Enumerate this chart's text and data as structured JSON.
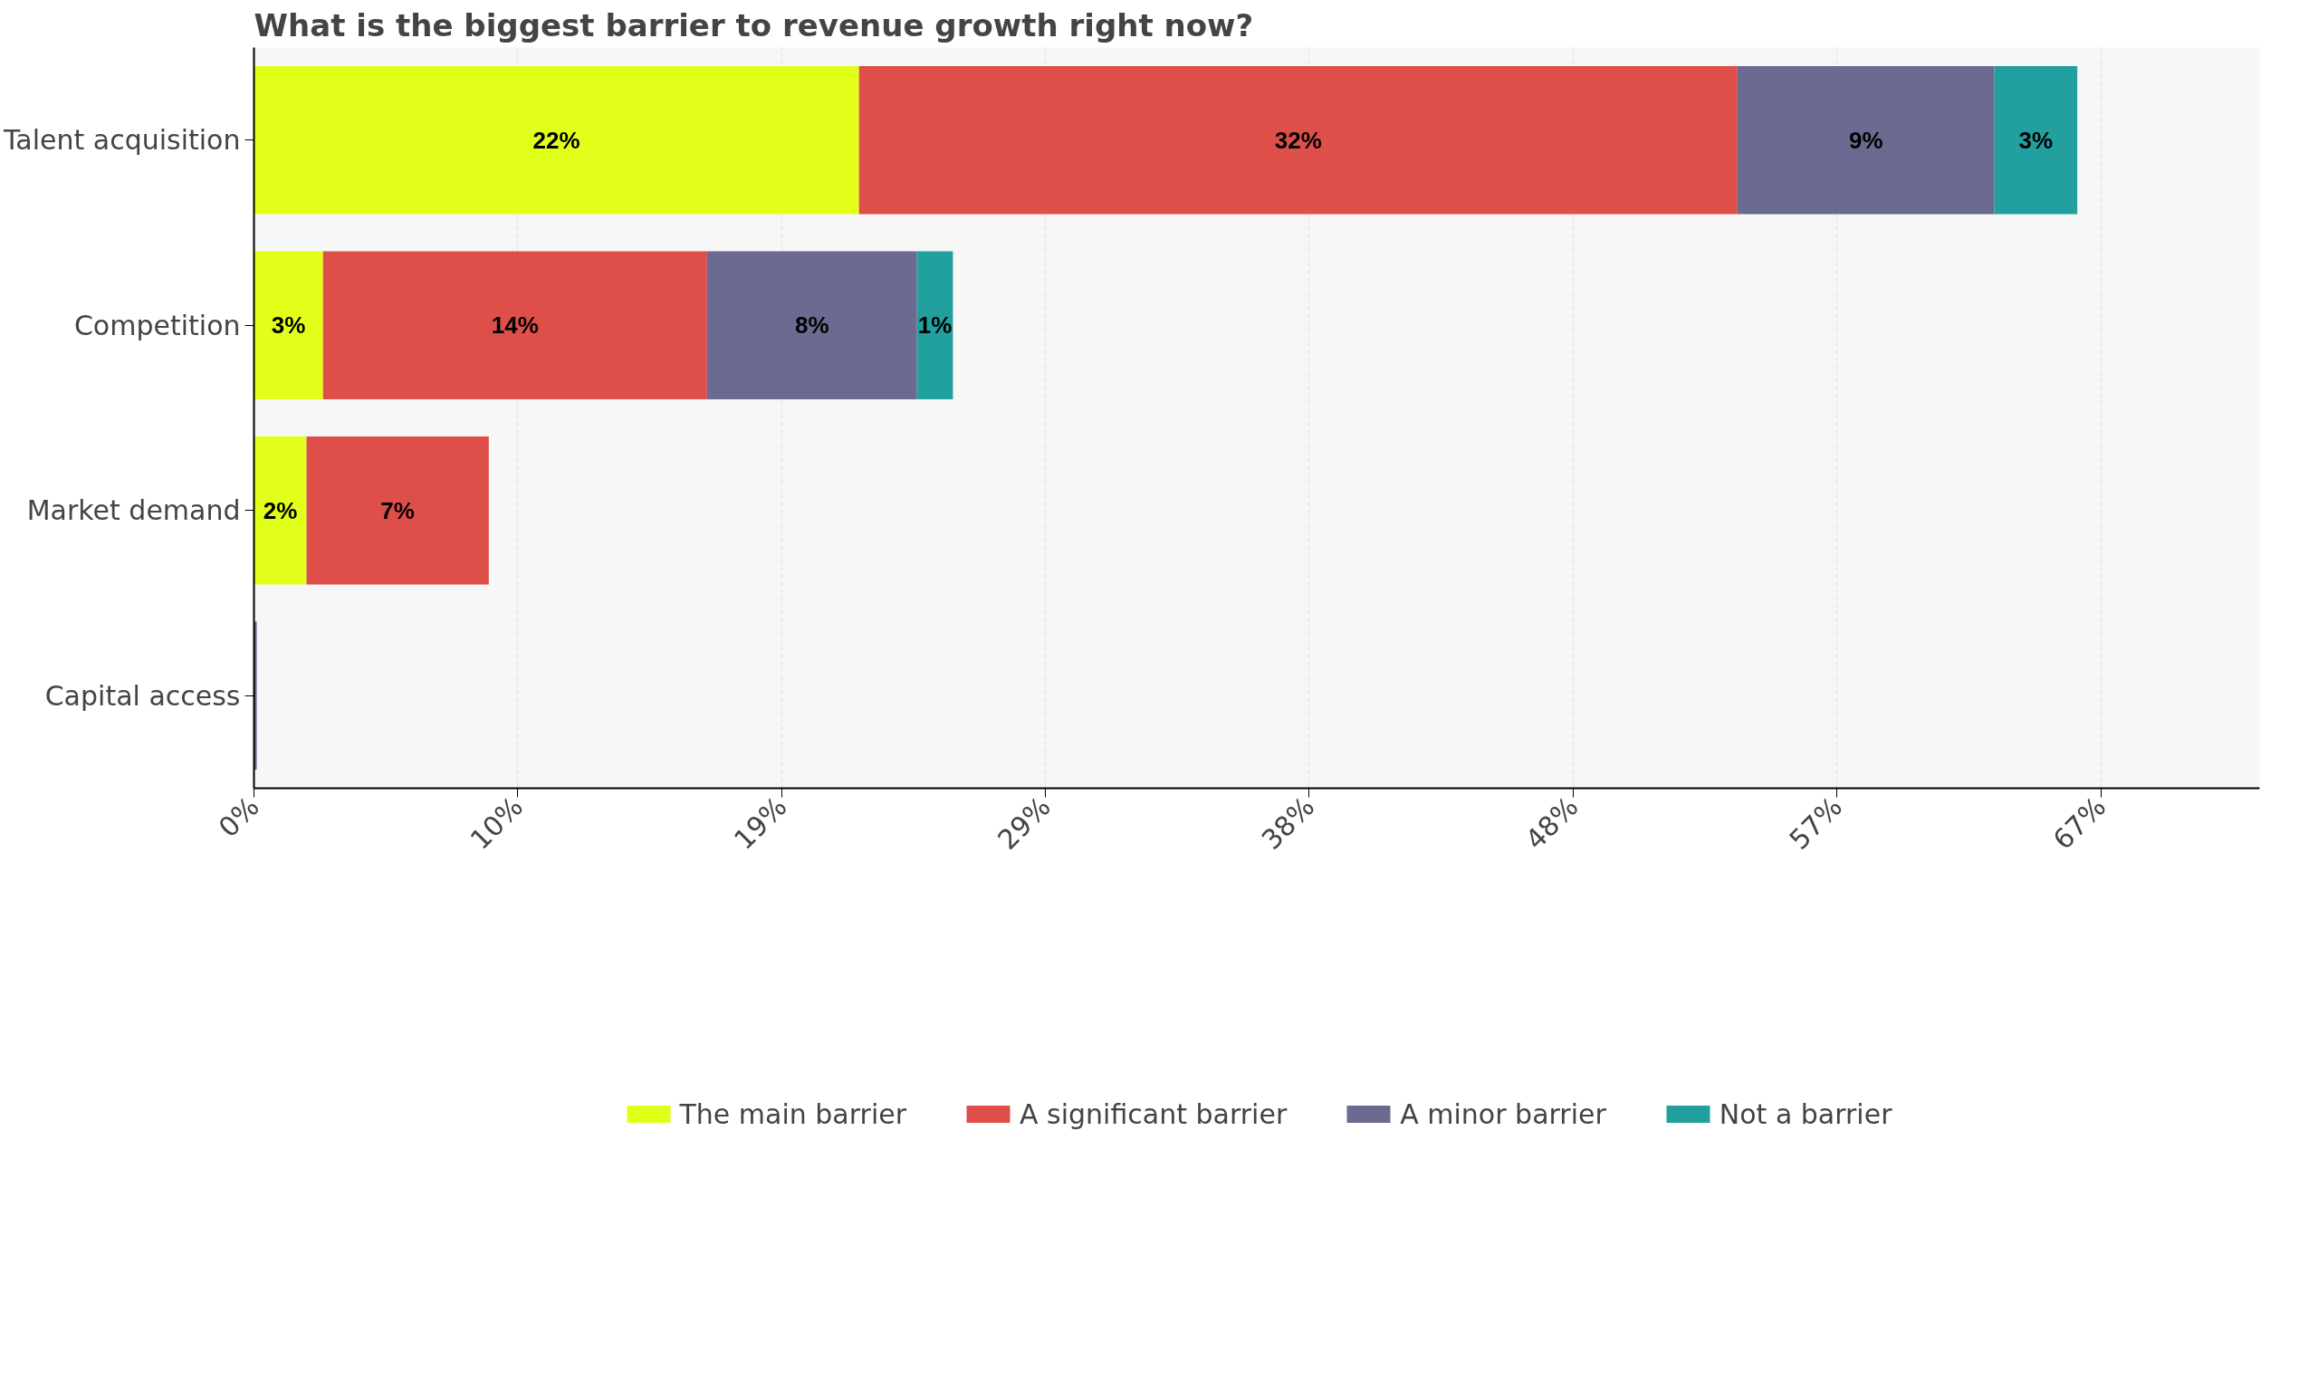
{
  "chart_data": {
    "type": "bar",
    "orientation": "horizontal",
    "stacked": true,
    "title": "What is the biggest barrier to revenue growth right now?",
    "categories": [
      "Talent acquisition",
      "Competition",
      "Market demand",
      "Capital access"
    ],
    "series": [
      {
        "name": "The main barrier",
        "color": "#e2ff1a",
        "values": [
          21.9,
          2.5,
          1.9,
          0
        ],
        "value_labels": [
          "22%",
          "3%",
          "2%",
          null
        ]
      },
      {
        "name": "A significant barrier",
        "color": "#df4f4a",
        "values": [
          31.8,
          13.9,
          6.6,
          0
        ],
        "value_labels": [
          "32%",
          "14%",
          "7%",
          null
        ]
      },
      {
        "name": "A minor barrier",
        "color": "#6b6a90",
        "values": [
          9.3,
          7.6,
          0,
          0.1
        ],
        "value_labels": [
          "9%",
          "8%",
          null,
          null
        ]
      },
      {
        "name": "Not a barrier",
        "color": "#21a09f",
        "values": [
          3.0,
          1.3,
          0,
          0
        ],
        "value_labels": [
          "3%",
          "1%",
          null,
          null
        ]
      }
    ],
    "xlim": [
      0,
      72.6
    ],
    "xticks": [
      {
        "value": 0,
        "label": "0%"
      },
      {
        "value": 9.55,
        "label": "10%"
      },
      {
        "value": 19.1,
        "label": "19%"
      },
      {
        "value": 28.65,
        "label": "29%"
      },
      {
        "value": 38.2,
        "label": "38%"
      },
      {
        "value": 47.75,
        "label": "48%"
      },
      {
        "value": 57.3,
        "label": "57%"
      },
      {
        "value": 66.85,
        "label": "67%"
      }
    ],
    "grid": "x",
    "legend": "bottom"
  }
}
